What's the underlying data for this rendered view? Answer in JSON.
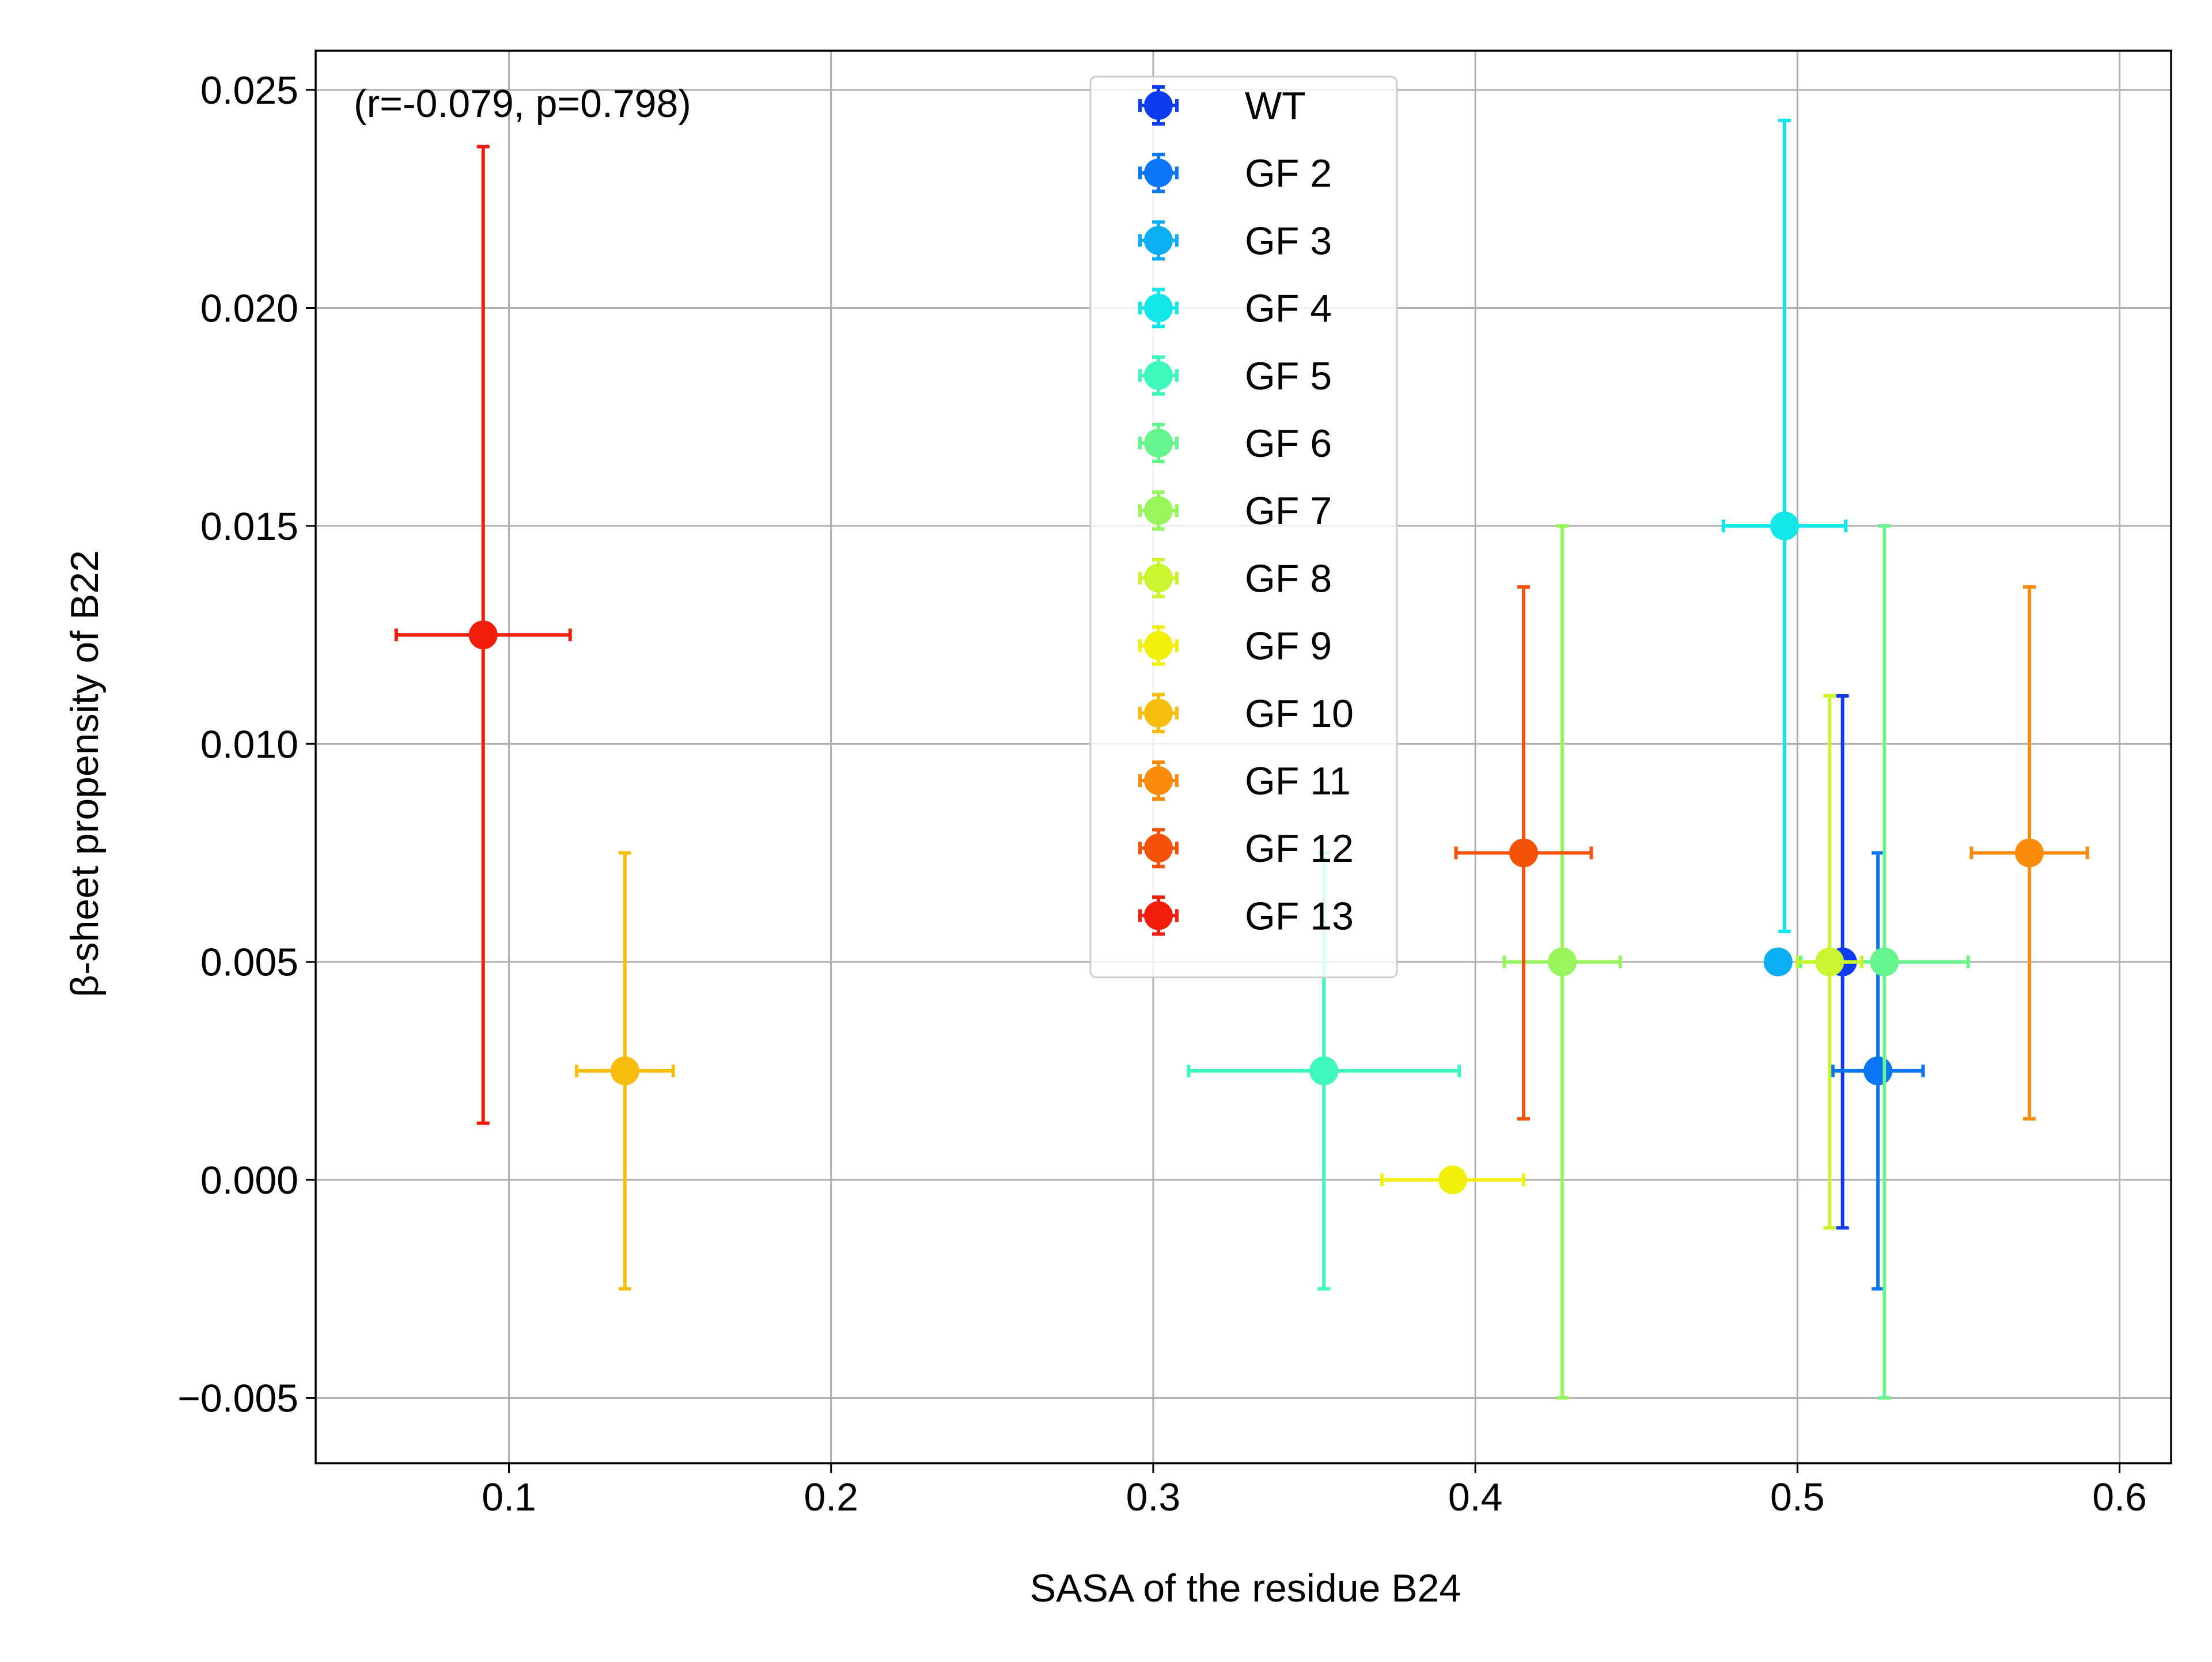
{
  "chart_data": {
    "type": "scatter",
    "xlabel": "SASA of the residue B24",
    "ylabel": "β-sheet propensity of B22",
    "annotation": "(r=-0.079, p=0.798)",
    "xlim": [
      0.04,
      0.616
    ],
    "ylim": [
      -0.0065,
      0.0259
    ],
    "x_ticks": [
      0.1,
      0.2,
      0.3,
      0.4,
      0.5,
      0.6
    ],
    "x_tick_labels": [
      "0.1",
      "0.2",
      "0.3",
      "0.4",
      "0.5",
      "0.6"
    ],
    "y_ticks": [
      -0.005,
      0.0,
      0.005,
      0.01,
      0.015,
      0.02,
      0.025
    ],
    "y_tick_labels": [
      "−0.005",
      "0.000",
      "0.005",
      "0.010",
      "0.015",
      "0.020",
      "0.025"
    ],
    "grid": true,
    "legend_position": "top-center",
    "series": [
      {
        "name": "WT",
        "color": "#0d3cf0",
        "x": 0.514,
        "y": 0.005,
        "xerr": 0.002,
        "yerr": 0.0061
      },
      {
        "name": "GF 2",
        "color": "#0a76f5",
        "x": 0.525,
        "y": 0.0025,
        "xerr": 0.014,
        "yerr": 0.005
      },
      {
        "name": "GF 3",
        "color": "#0aaef2",
        "x": 0.494,
        "y": 0.005,
        "xerr": 0.002,
        "yerr": 0.0
      },
      {
        "name": "GF 4",
        "color": "#12e6e8",
        "x": 0.496,
        "y": 0.015,
        "xerr": 0.019,
        "yerr": 0.0093
      },
      {
        "name": "GF 5",
        "color": "#3df7be",
        "x": 0.353,
        "y": 0.0025,
        "xerr": 0.042,
        "yerr": 0.005
      },
      {
        "name": "GF 6",
        "color": "#66f58c",
        "x": 0.527,
        "y": 0.005,
        "xerr": 0.026,
        "yerr": 0.01
      },
      {
        "name": "GF 7",
        "color": "#96f55a",
        "x": 0.427,
        "y": 0.005,
        "xerr": 0.018,
        "yerr": 0.01
      },
      {
        "name": "GF 8",
        "color": "#c8f52d",
        "x": 0.51,
        "y": 0.005,
        "xerr": 0.01,
        "yerr": 0.0061
      },
      {
        "name": "GF 9",
        "color": "#f2f00a",
        "x": 0.393,
        "y": 0.0,
        "xerr": 0.022,
        "yerr": 0.0
      },
      {
        "name": "GF 10",
        "color": "#f7bd0d",
        "x": 0.136,
        "y": 0.0025,
        "xerr": 0.015,
        "yerr": 0.005
      },
      {
        "name": "GF 11",
        "color": "#fa8c0d",
        "x": 0.572,
        "y": 0.0075,
        "xerr": 0.018,
        "yerr": 0.0061
      },
      {
        "name": "GF 12",
        "color": "#f7520a",
        "x": 0.415,
        "y": 0.0075,
        "xerr": 0.021,
        "yerr": 0.0061
      },
      {
        "name": "GF 13",
        "color": "#f21d0a",
        "x": 0.092,
        "y": 0.0125,
        "xerr": 0.027,
        "yerr": 0.0112
      }
    ]
  }
}
